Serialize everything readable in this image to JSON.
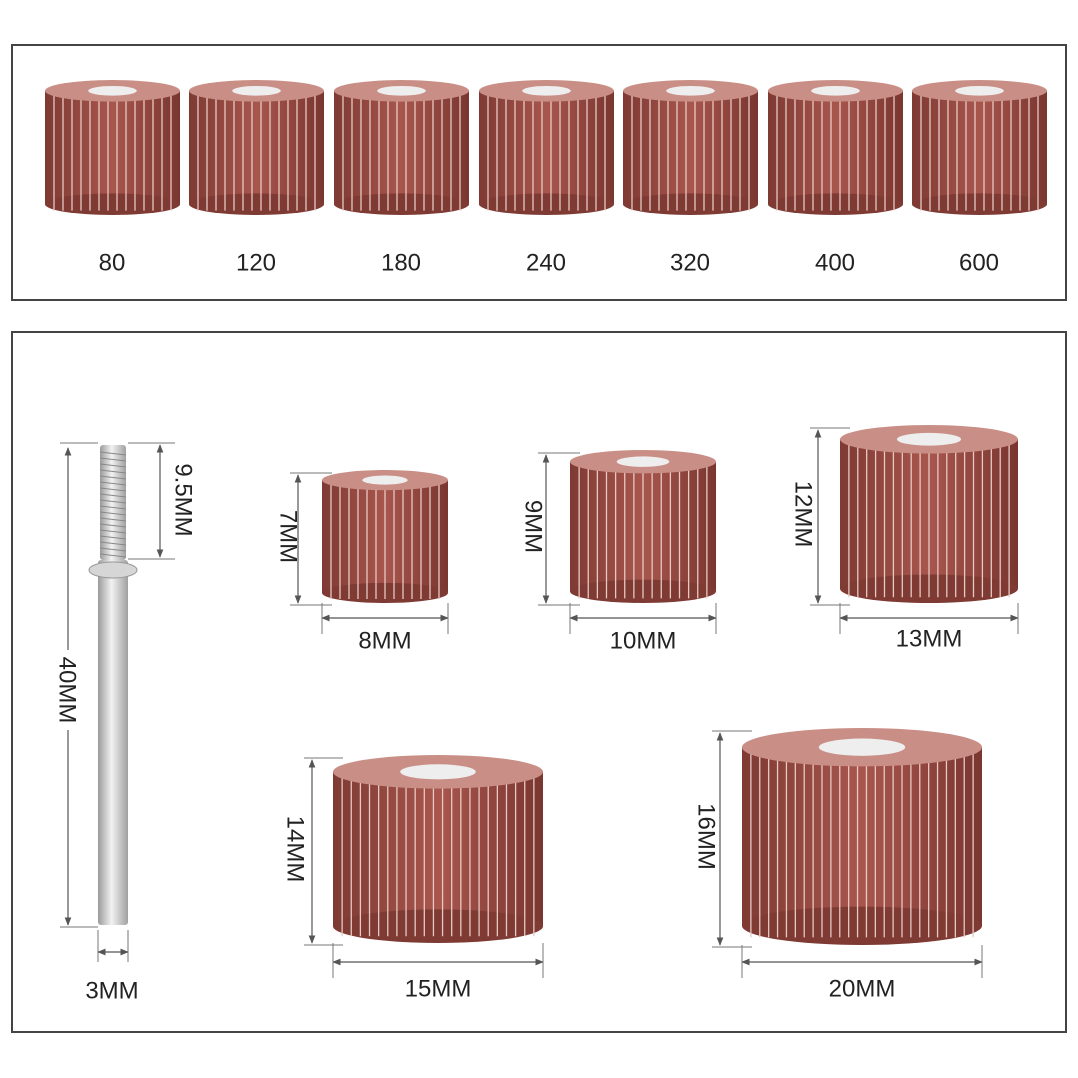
{
  "grits": [
    "80",
    "120",
    "180",
    "240",
    "320",
    "400",
    "600"
  ],
  "mandrel": {
    "thread_length": "9.5MM",
    "length": "40MM",
    "diameter": "3MM"
  },
  "sizes": [
    {
      "height": "7MM",
      "width": "8MM"
    },
    {
      "height": "9MM",
      "width": "10MM"
    },
    {
      "height": "12MM",
      "width": "13MM"
    },
    {
      "height": "14MM",
      "width": "15MM"
    },
    {
      "height": "16MM",
      "width": "20MM"
    }
  ]
}
